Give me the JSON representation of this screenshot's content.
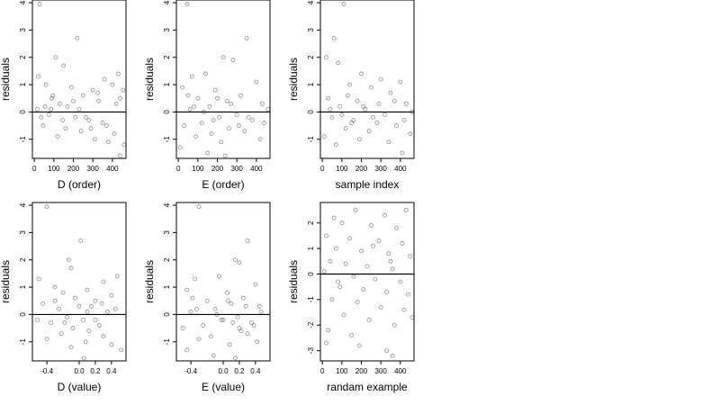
{
  "chart_data": [
    {
      "type": "scatter",
      "xlabel": "D (order)",
      "ylabel": "residuals",
      "xlim": [
        -10,
        470
      ],
      "ylim": [
        -1.7,
        4.1
      ],
      "xticks": [
        0,
        100,
        200,
        300,
        400
      ],
      "xtick_labels": [
        "0",
        "100",
        "200",
        "300",
        "400"
      ],
      "yticks": [
        -1,
        0,
        1,
        2,
        3,
        4
      ],
      "ytick_labels": [
        "-1",
        "0",
        "1",
        "2",
        "3",
        "4"
      ],
      "hline": 0,
      "points": [
        [
          27,
          3.95
        ],
        [
          220,
          2.7
        ],
        [
          110,
          2.0
        ],
        [
          150,
          1.7
        ],
        [
          430,
          1.4
        ],
        [
          20,
          1.3
        ],
        [
          360,
          1.2
        ],
        [
          60,
          1.0
        ],
        [
          190,
          0.9
        ],
        [
          300,
          0.8
        ],
        [
          400,
          1.0
        ],
        [
          250,
          0.6
        ],
        [
          90,
          0.5
        ],
        [
          130,
          0.3
        ],
        [
          330,
          0.4
        ],
        [
          170,
          0.2
        ],
        [
          440,
          0.5
        ],
        [
          15,
          0.1
        ],
        [
          75,
          -0.1
        ],
        [
          210,
          -0.2
        ],
        [
          280,
          -0.3
        ],
        [
          350,
          -0.4
        ],
        [
          45,
          -0.5
        ],
        [
          160,
          -0.6
        ],
        [
          240,
          -0.7
        ],
        [
          410,
          -0.8
        ],
        [
          120,
          -0.9
        ],
        [
          310,
          -1.0
        ],
        [
          380,
          -1.1
        ],
        [
          460,
          -1.2
        ],
        [
          55,
          0.2
        ],
        [
          95,
          0.6
        ],
        [
          145,
          -0.3
        ],
        [
          200,
          0.4
        ],
        [
          265,
          -0.2
        ],
        [
          325,
          0.7
        ],
        [
          370,
          -0.5
        ],
        [
          420,
          0.3
        ],
        [
          35,
          -0.2
        ],
        [
          85,
          0.1
        ],
        [
          230,
          0.1
        ],
        [
          290,
          -0.6
        ],
        [
          455,
          0.8
        ],
        [
          440,
          -1.6
        ]
      ]
    },
    {
      "type": "scatter",
      "xlabel": "E (order)",
      "ylabel": "residuals",
      "xlim": [
        -10,
        470
      ],
      "ylim": [
        -1.7,
        4.1
      ],
      "xticks": [
        0,
        100,
        200,
        300,
        400
      ],
      "xtick_labels": [
        "0",
        "100",
        "200",
        "300",
        "400"
      ],
      "yticks": [
        -1,
        0,
        1,
        2,
        3,
        4
      ],
      "ytick_labels": [
        "-1",
        "0",
        "1",
        "2",
        "3",
        "4"
      ],
      "hline": 0,
      "points": [
        [
          45,
          3.95
        ],
        [
          350,
          2.7
        ],
        [
          230,
          2.0
        ],
        [
          280,
          1.9
        ],
        [
          140,
          1.4
        ],
        [
          70,
          1.3
        ],
        [
          400,
          1.1
        ],
        [
          20,
          0.9
        ],
        [
          190,
          0.8
        ],
        [
          320,
          0.6
        ],
        [
          100,
          0.5
        ],
        [
          250,
          0.4
        ],
        [
          430,
          0.3
        ],
        [
          160,
          0.2
        ],
        [
          60,
          0.1
        ],
        [
          300,
          -0.1
        ],
        [
          210,
          -0.2
        ],
        [
          380,
          -0.3
        ],
        [
          120,
          -0.4
        ],
        [
          30,
          -0.5
        ],
        [
          260,
          -0.6
        ],
        [
          340,
          -0.7
        ],
        [
          170,
          -0.8
        ],
        [
          90,
          -0.9
        ],
        [
          420,
          -1.0
        ],
        [
          220,
          -1.1
        ],
        [
          10,
          -1.3
        ],
        [
          150,
          -1.5
        ],
        [
          460,
          0.1
        ],
        [
          50,
          0.6
        ],
        [
          180,
          -0.3
        ],
        [
          270,
          0.3
        ],
        [
          360,
          -0.2
        ],
        [
          440,
          -0.4
        ],
        [
          80,
          0.2
        ],
        [
          200,
          0.5
        ],
        [
          310,
          -0.5
        ],
        [
          130,
          0.0
        ],
        [
          240,
          -1.6
        ]
      ]
    },
    {
      "type": "scatter",
      "xlabel": "sample index",
      "ylabel": "residuals",
      "xlim": [
        -10,
        470
      ],
      "ylim": [
        -1.7,
        4.1
      ],
      "xticks": [
        0,
        100,
        200,
        300,
        400
      ],
      "xtick_labels": [
        "0",
        "100",
        "200",
        "300",
        "400"
      ],
      "yticks": [
        -1,
        0,
        1,
        2,
        3,
        4
      ],
      "ytick_labels": [
        "-1",
        "0",
        "1",
        "2",
        "3",
        "4"
      ],
      "hline": 0,
      "points": [
        [
          110,
          3.95
        ],
        [
          60,
          2.7
        ],
        [
          20,
          2.0
        ],
        [
          80,
          1.8
        ],
        [
          200,
          1.4
        ],
        [
          300,
          1.2
        ],
        [
          400,
          1.1
        ],
        [
          140,
          1.0
        ],
        [
          250,
          0.9
        ],
        [
          350,
          0.7
        ],
        [
          30,
          0.5
        ],
        [
          180,
          0.4
        ],
        [
          430,
          0.3
        ],
        [
          90,
          0.2
        ],
        [
          220,
          0.1
        ],
        [
          320,
          -0.1
        ],
        [
          50,
          -0.2
        ],
        [
          160,
          -0.3
        ],
        [
          280,
          -0.4
        ],
        [
          380,
          -0.5
        ],
        [
          120,
          -0.6
        ],
        [
          240,
          -0.7
        ],
        [
          450,
          -0.8
        ],
        [
          10,
          -0.9
        ],
        [
          190,
          -1.0
        ],
        [
          340,
          -1.1
        ],
        [
          70,
          -1.2
        ],
        [
          410,
          -1.5
        ],
        [
          460,
          0.0
        ],
        [
          130,
          0.6
        ],
        [
          260,
          -0.2
        ],
        [
          370,
          0.4
        ],
        [
          40,
          0.1
        ],
        [
          150,
          -0.4
        ],
        [
          290,
          0.3
        ],
        [
          420,
          -0.3
        ],
        [
          100,
          -0.1
        ],
        [
          210,
          0.2
        ]
      ]
    },
    {
      "type": "scatter",
      "xlabel": "D (value)",
      "ylabel": "residuals",
      "xlim": [
        -0.58,
        0.58
      ],
      "ylim": [
        -1.7,
        4.1
      ],
      "xticks": [
        -0.4,
        0.0,
        0.2,
        0.4
      ],
      "xtick_labels": [
        "-0.4",
        "0.0",
        "0.2",
        "0.4"
      ],
      "yticks": [
        -1,
        0,
        1,
        2,
        3,
        4
      ],
      "ytick_labels": [
        "-1",
        "0",
        "1",
        "2",
        "3",
        "4"
      ],
      "hline": 0,
      "points": [
        [
          -0.4,
          3.95
        ],
        [
          0.02,
          2.7
        ],
        [
          -0.13,
          2.0
        ],
        [
          -0.1,
          1.7
        ],
        [
          0.47,
          1.4
        ],
        [
          -0.5,
          1.3
        ],
        [
          0.3,
          1.2
        ],
        [
          -0.3,
          1.0
        ],
        [
          0.1,
          0.9
        ],
        [
          -0.2,
          0.8
        ],
        [
          0.4,
          0.7
        ],
        [
          -0.05,
          0.6
        ],
        [
          0.2,
          0.5
        ],
        [
          -0.45,
          0.4
        ],
        [
          0.15,
          0.3
        ],
        [
          -0.25,
          0.2
        ],
        [
          0.35,
          0.1
        ],
        [
          -0.15,
          -0.1
        ],
        [
          0.05,
          -0.2
        ],
        [
          -0.35,
          -0.3
        ],
        [
          0.25,
          -0.4
        ],
        [
          -0.08,
          -0.5
        ],
        [
          0.12,
          -0.6
        ],
        [
          -0.22,
          -0.7
        ],
        [
          0.3,
          -0.8
        ],
        [
          -0.4,
          -0.9
        ],
        [
          0.08,
          -1.0
        ],
        [
          0.4,
          -1.1
        ],
        [
          -0.1,
          -1.2
        ],
        [
          0.52,
          -1.3
        ],
        [
          0.1,
          0.1
        ],
        [
          -0.52,
          -0.2
        ],
        [
          0.0,
          0.3
        ],
        [
          0.2,
          -0.2
        ],
        [
          -0.3,
          0.5
        ],
        [
          0.45,
          0.2
        ],
        [
          -0.18,
          -0.3
        ],
        [
          0.28,
          0.4
        ],
        [
          0.06,
          -1.6
        ]
      ]
    },
    {
      "type": "scatter",
      "xlabel": "E (value)",
      "ylabel": "residuals",
      "xlim": [
        -0.58,
        0.58
      ],
      "ylim": [
        -1.7,
        4.1
      ],
      "xticks": [
        -0.4,
        0.0,
        0.2,
        0.4
      ],
      "xtick_labels": [
        "-0.4",
        "0.0",
        "0.2",
        "0.4"
      ],
      "yticks": [
        -1,
        0,
        1,
        2,
        3,
        4
      ],
      "ytick_labels": [
        "-1",
        "0",
        "1",
        "2",
        "3",
        "4"
      ],
      "hline": 0,
      "points": [
        [
          -0.3,
          3.95
        ],
        [
          0.3,
          2.7
        ],
        [
          0.15,
          2.0
        ],
        [
          0.2,
          1.9
        ],
        [
          -0.05,
          1.4
        ],
        [
          -0.35,
          1.3
        ],
        [
          0.4,
          1.1
        ],
        [
          -0.45,
          0.9
        ],
        [
          0.05,
          0.8
        ],
        [
          0.25,
          0.6
        ],
        [
          -0.2,
          0.5
        ],
        [
          0.1,
          0.4
        ],
        [
          0.45,
          0.3
        ],
        [
          -0.1,
          0.2
        ],
        [
          -0.4,
          0.1
        ],
        [
          0.18,
          -0.1
        ],
        [
          0.0,
          -0.2
        ],
        [
          0.35,
          -0.3
        ],
        [
          -0.25,
          -0.4
        ],
        [
          -0.5,
          -0.5
        ],
        [
          0.22,
          -0.6
        ],
        [
          0.3,
          -0.7
        ],
        [
          -0.15,
          -0.8
        ],
        [
          -0.3,
          -0.9
        ],
        [
          0.42,
          -1.0
        ],
        [
          0.08,
          -1.1
        ],
        [
          -0.45,
          -1.3
        ],
        [
          -0.12,
          -1.5
        ],
        [
          0.47,
          0.1
        ],
        [
          -0.38,
          0.6
        ],
        [
          0.12,
          -0.3
        ],
        [
          0.28,
          0.3
        ],
        [
          -0.02,
          -0.2
        ],
        [
          0.38,
          -0.4
        ],
        [
          -0.33,
          0.2
        ],
        [
          0.06,
          0.5
        ],
        [
          0.2,
          -0.5
        ],
        [
          -0.08,
          0.0
        ],
        [
          0.15,
          -1.6
        ]
      ]
    },
    {
      "type": "scatter",
      "xlabel": "randam example",
      "ylabel": "residuals",
      "xlim": [
        -10,
        470
      ],
      "ylim": [
        -3.4,
        2.8
      ],
      "xticks": [
        0,
        100,
        200,
        300,
        400
      ],
      "xtick_labels": [
        "0",
        "100",
        "200",
        "300",
        "400"
      ],
      "yticks": [
        -3,
        -2,
        -1,
        0,
        1,
        2
      ],
      "ytick_labels": [
        "-3",
        "-2",
        "-1",
        "0",
        "1",
        "2"
      ],
      "hline": 0,
      "points": [
        [
          60,
          2.2
        ],
        [
          170,
          2.5
        ],
        [
          320,
          2.3
        ],
        [
          430,
          2.5
        ],
        [
          100,
          2.0
        ],
        [
          250,
          1.9
        ],
        [
          380,
          1.8
        ],
        [
          20,
          1.5
        ],
        [
          140,
          1.4
        ],
        [
          290,
          1.3
        ],
        [
          410,
          1.2
        ],
        [
          70,
          1.0
        ],
        [
          200,
          0.9
        ],
        [
          340,
          0.8
        ],
        [
          450,
          0.7
        ],
        [
          40,
          0.5
        ],
        [
          120,
          0.4
        ],
        [
          230,
          0.3
        ],
        [
          360,
          0.2
        ],
        [
          10,
          0.1
        ],
        [
          160,
          -0.1
        ],
        [
          270,
          -0.2
        ],
        [
          400,
          -0.3
        ],
        [
          90,
          -0.5
        ],
        [
          210,
          -0.6
        ],
        [
          330,
          -0.7
        ],
        [
          440,
          -0.8
        ],
        [
          50,
          -1.0
        ],
        [
          180,
          -1.1
        ],
        [
          300,
          -1.3
        ],
        [
          420,
          -1.4
        ],
        [
          110,
          -1.6
        ],
        [
          240,
          -1.8
        ],
        [
          370,
          -2.0
        ],
        [
          30,
          -2.2
        ],
        [
          150,
          -2.4
        ],
        [
          190,
          -2.8
        ],
        [
          20,
          -2.7
        ],
        [
          330,
          -3.0
        ],
        [
          360,
          -3.2
        ],
        [
          460,
          -1.7
        ],
        [
          260,
          1.1
        ],
        [
          80,
          -0.3
        ],
        [
          350,
          0.5
        ]
      ]
    }
  ]
}
